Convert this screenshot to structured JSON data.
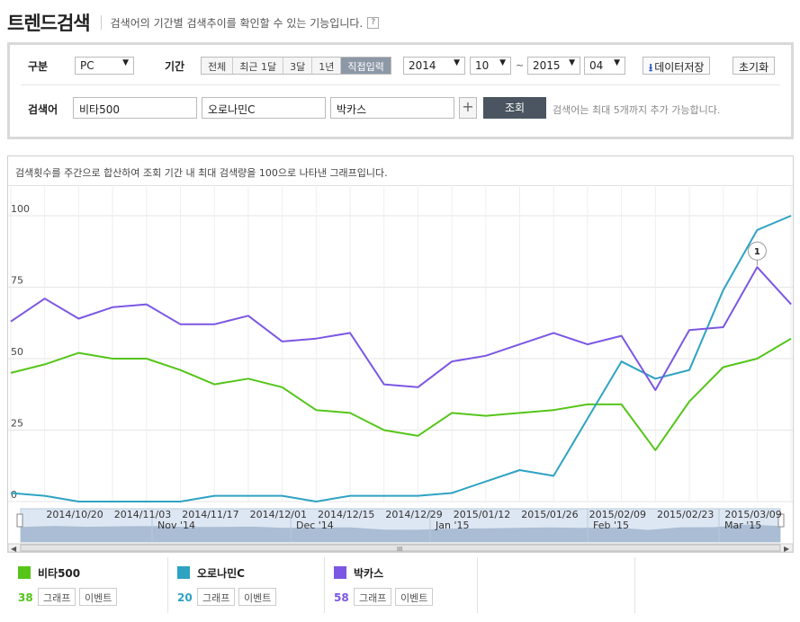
{
  "header": {
    "title": "트렌드검색",
    "description": "검색어의 기간별 검색추이를 확인할 수 있는 기능입니다.",
    "help": "?"
  },
  "filters": {
    "category_label": "구분",
    "category_value": "PC",
    "period_label": "기간",
    "period_tabs": [
      "전체",
      "최근 1달",
      "3달",
      "1년",
      "직접입력"
    ],
    "active_tab": "직접입력",
    "start_year": "2014",
    "start_month": "10",
    "range_sep": "~",
    "end_year": "2015",
    "end_month": "04",
    "save_data": "데이터저장",
    "reset": "초기화",
    "keyword_label": "검색어",
    "keywords": [
      "비타500",
      "오로나민C",
      "박카스"
    ],
    "add": "+",
    "query": "조회",
    "hint": "검색어는 최대 5개까지 추가 가능합니다."
  },
  "chart_note": "검색횟수를 주간으로 합산하여 조회 기간 내 최대 검색량을 100으로 나타낸 그래프입니다.",
  "marker_label": "1",
  "nav": {
    "months": [
      "Nov '14",
      "Dec '14",
      "Jan '15",
      "Feb '15",
      "Mar '15"
    ],
    "grip": "III"
  },
  "colors": {
    "vita500": "#55c51a",
    "oronaminc": "#2ea3c2",
    "bacchus": "#7b57e3"
  },
  "legend": [
    {
      "name": "비타500",
      "value": "38",
      "color": "#55c51a",
      "graph": "그래프",
      "event": "이벤트"
    },
    {
      "name": "오로나민C",
      "value": "20",
      "color": "#2ea3c2",
      "graph": "그래프",
      "event": "이벤트"
    },
    {
      "name": "박카스",
      "value": "58",
      "color": "#7b57e3",
      "graph": "그래프",
      "event": "이벤트"
    }
  ],
  "chart_data": {
    "type": "line",
    "x": [
      "2014/10/06",
      "2014/10/13",
      "2014/10/20",
      "2014/10/27",
      "2014/11/03",
      "2014/11/10",
      "2014/11/17",
      "2014/11/24",
      "2014/12/01",
      "2014/12/08",
      "2014/12/15",
      "2014/12/22",
      "2014/12/29",
      "2015/01/05",
      "2015/01/12",
      "2015/01/19",
      "2015/01/26",
      "2015/02/02",
      "2015/02/09",
      "2015/02/16",
      "2015/02/23",
      "2015/03/02",
      "2015/03/09",
      "2015/03/16"
    ],
    "x_tick_labels": [
      "2014/10/20",
      "2014/11/03",
      "2014/11/17",
      "2014/12/01",
      "2014/12/15",
      "2014/12/29",
      "2015/01/12",
      "2015/01/26",
      "2015/02/09",
      "2015/02/23",
      "2015/03/09"
    ],
    "y_tick_labels": [
      "100",
      "75",
      "50",
      "25",
      "0"
    ],
    "ylim": [
      0,
      100
    ],
    "grid": true,
    "series": [
      {
        "name": "비타500",
        "values": [
          45,
          48,
          52,
          50,
          50,
          46,
          41,
          43,
          40,
          32,
          31,
          25,
          23,
          31,
          30,
          31,
          32,
          34,
          34,
          18,
          35,
          47,
          50,
          57
        ]
      },
      {
        "name": "오로나민C",
        "values": [
          3,
          2,
          0,
          0,
          0,
          0,
          2,
          2,
          2,
          0,
          2,
          2,
          2,
          3,
          7,
          11,
          9,
          29,
          49,
          43,
          46,
          74,
          95,
          100
        ]
      },
      {
        "name": "박카스",
        "values": [
          63,
          71,
          64,
          68,
          69,
          62,
          62,
          65,
          56,
          57,
          59,
          41,
          40,
          49,
          51,
          55,
          59,
          55,
          58,
          39,
          60,
          61,
          82,
          69
        ]
      }
    ]
  }
}
